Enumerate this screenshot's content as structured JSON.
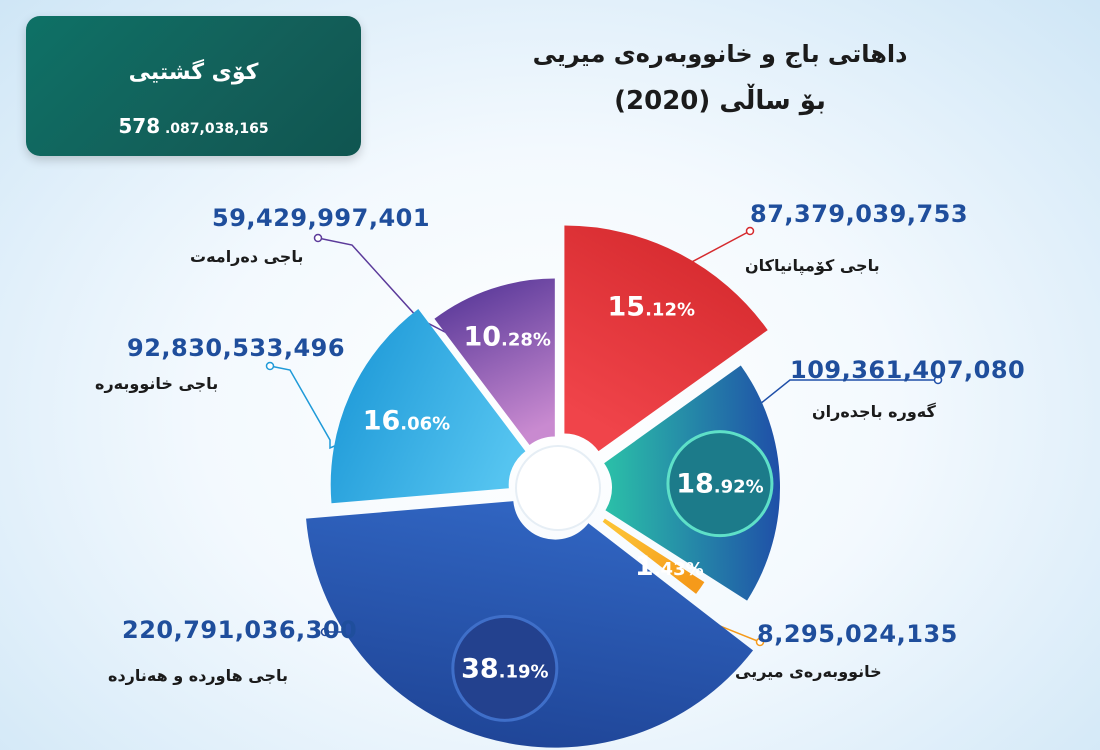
{
  "total": {
    "title": "کۆی گشتیی",
    "value_prefix": "578",
    "value_rest": ".087,038,165"
  },
  "title_line1": "داهاتی باج و خانووبەرەی میریی",
  "title_line2": "بۆ ساڵی (2020)",
  "chart_data": {
    "type": "pie",
    "title": "داهاتی باج و خانووبەرەی میریی بۆ ساڵی (2020)",
    "total": "578,087,038,165",
    "slices": [
      {
        "name": "باجی کۆمپانیاکان",
        "value": "87,379,039,753",
        "value_num": 87379039753,
        "percent": "15.12%",
        "pct_int": "15",
        "pct_dec": ".12%",
        "color": "#d52a2e",
        "color2": "#f0444a"
      },
      {
        "name": "گەورە باجدەران",
        "value": "109,361,407,080",
        "value_num": 109361407080,
        "percent": "18.92%",
        "pct_int": "18",
        "pct_dec": ".92%",
        "color": "#1f4fa8",
        "color2": "#2bc1a8"
      },
      {
        "name": "خانووبەرەی میریی",
        "value": "8,295,024,135",
        "value_num": 8295024135,
        "percent": "1.43%",
        "pct_int": "1",
        "pct_dec": ".43%",
        "color": "#f59a1a",
        "color2": "#fcc133"
      },
      {
        "name": "باجی هاوردە و هەناردە",
        "value": "220,791,036,300",
        "value_num": 220791036300,
        "percent": "38.19%",
        "pct_int": "38",
        "pct_dec": ".19%",
        "color": "#1f4597",
        "color2": "#3166c3"
      },
      {
        "name": "باجی خانووبەرە",
        "value": "92,830,533,496",
        "value_num": 92830533496,
        "percent": "16.06%",
        "pct_int": "16",
        "pct_dec": ".06%",
        "color": "#1f9ad8",
        "color2": "#55c4f0"
      },
      {
        "name": "باجی دەرامەت",
        "value": "59,429,997,401",
        "value_num": 59429997401,
        "percent": "10.28%",
        "pct_int": "10",
        "pct_dec": ".28%",
        "color": "#5b3a9a",
        "color2": "#c98ad0"
      }
    ]
  }
}
